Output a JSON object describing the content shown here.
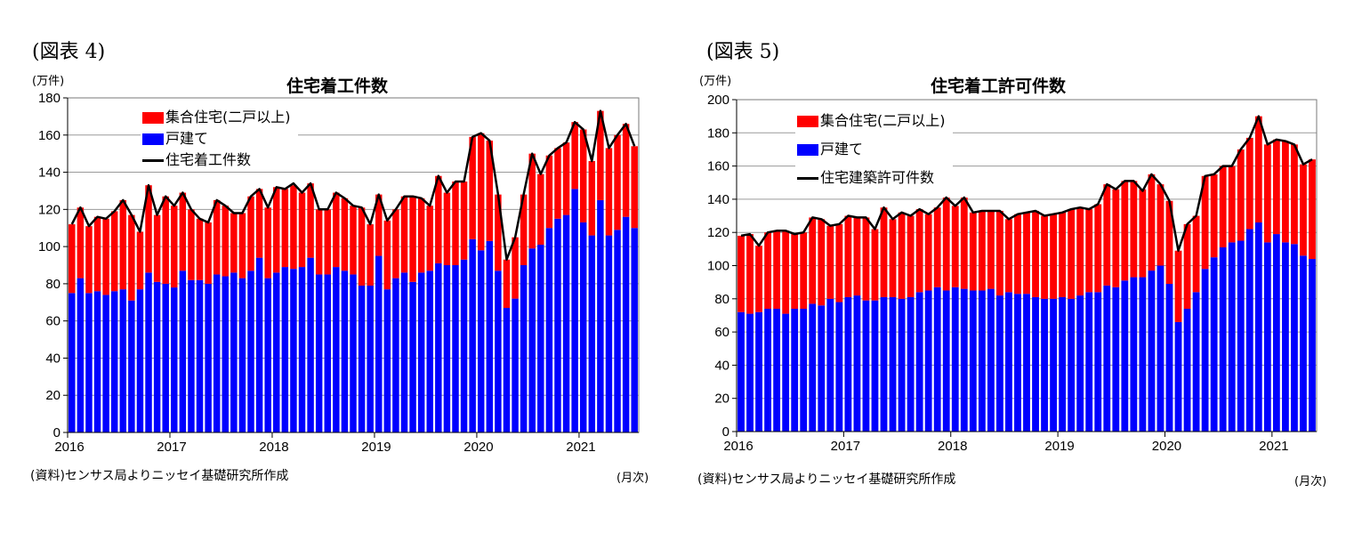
{
  "colors": {
    "multi": "#ff0000",
    "single": "#0000ff",
    "total": "#000000"
  },
  "charts": [
    {
      "figure_label": "(図表 4)",
      "unit_label": "(万件)",
      "x_unit_label": "(月次)",
      "source": "(資料)センサス局よりニッセイ基礎研究所作成",
      "legend_labels": [
        "集合住宅(二戸以上)",
        "戸建て",
        "住宅着工件数"
      ]
    },
    {
      "figure_label": "(図表 5)",
      "unit_label": "(万件)",
      "x_unit_label": "(月次)",
      "source": "(資料)センサス局よりニッセイ基礎研究所作成",
      "legend_labels": [
        "集合住宅(二戸以上)",
        "戸建て",
        "住宅建築許可件数"
      ]
    }
  ],
  "chart_data": [
    {
      "type": "bar",
      "stacked": true,
      "title": "住宅着工件数",
      "xlabel": "(月次)",
      "ylabel": "(万件)",
      "ylim": [
        0,
        180
      ],
      "yticks": [
        0,
        20,
        40,
        60,
        80,
        100,
        120,
        140,
        160,
        180
      ],
      "xtick_labels": [
        "2016",
        "2017",
        "2018",
        "2019",
        "2020",
        "2021"
      ],
      "months_per_year": 12,
      "legend_position": "top-left",
      "grid": true,
      "series": [
        {
          "name": "戸建て",
          "color": "#0000ff",
          "stack": true,
          "values": [
            75,
            83,
            75,
            76,
            74,
            76,
            77,
            71,
            77,
            86,
            81,
            80,
            78,
            87,
            82,
            82,
            80,
            85,
            84,
            86,
            83,
            87,
            94,
            83,
            86,
            89,
            88,
            89,
            94,
            85,
            85,
            89,
            87,
            85,
            79,
            79,
            95,
            77,
            83,
            86,
            81,
            86,
            87,
            91,
            90,
            90,
            93,
            104,
            98,
            103,
            87,
            67,
            72,
            90,
            99,
            101,
            110,
            115,
            117,
            131,
            113,
            106,
            125,
            106,
            109,
            116,
            110
          ]
        },
        {
          "name": "集合住宅(二戸以上)",
          "color": "#ff0000",
          "stack": true,
          "values": [
            37,
            38,
            36,
            40,
            41,
            43,
            48,
            46,
            31,
            47,
            36,
            47,
            44,
            42,
            38,
            33,
            33,
            40,
            38,
            32,
            35,
            40,
            37,
            38,
            46,
            42,
            45,
            40,
            40,
            35,
            35,
            40,
            39,
            37,
            42,
            33,
            33,
            37,
            37,
            41,
            46,
            40,
            35,
            47,
            39,
            45,
            42,
            55,
            63,
            54,
            41,
            26,
            33,
            38,
            51,
            38,
            39,
            38,
            39,
            36,
            50,
            40,
            48,
            47,
            51,
            50,
            44
          ]
        },
        {
          "name": "住宅着工件数",
          "type": "line",
          "color": "#000000",
          "values": [
            112,
            121,
            111,
            116,
            115,
            119,
            125,
            117,
            108,
            133,
            117,
            127,
            122,
            129,
            120,
            115,
            113,
            125,
            122,
            118,
            118,
            127,
            131,
            121,
            132,
            131,
            134,
            129,
            134,
            120,
            120,
            129,
            126,
            122,
            121,
            112,
            128,
            114,
            120,
            127,
            127,
            126,
            122,
            138,
            129,
            135,
            135,
            159,
            161,
            157,
            128,
            93,
            105,
            128,
            150,
            139,
            149,
            153,
            156,
            167,
            163,
            146,
            173,
            153,
            160,
            166,
            154
          ]
        }
      ]
    },
    {
      "type": "bar",
      "stacked": true,
      "title": "住宅着工許可件数",
      "xlabel": "(月次)",
      "ylabel": "(万件)",
      "ylim": [
        0,
        200
      ],
      "yticks": [
        0,
        20,
        40,
        60,
        80,
        100,
        120,
        140,
        160,
        180,
        200
      ],
      "xtick_labels": [
        "2016",
        "2017",
        "2018",
        "2019",
        "2020",
        "2021"
      ],
      "months_per_year": 12,
      "legend_position": "top-left",
      "grid": true,
      "series": [
        {
          "name": "戸建て",
          "color": "#0000ff",
          "stack": true,
          "values": [
            72,
            71,
            72,
            74,
            74,
            71,
            74,
            74,
            77,
            76,
            80,
            78,
            81,
            82,
            79,
            79,
            81,
            81,
            80,
            81,
            84,
            85,
            87,
            85,
            87,
            86,
            85,
            85,
            86,
            82,
            84,
            83,
            83,
            81,
            80,
            80,
            81,
            80,
            82,
            84,
            84,
            88,
            87,
            91,
            93,
            93,
            97,
            100,
            89,
            66,
            74,
            84,
            98,
            105,
            111,
            114,
            115,
            122,
            126,
            114,
            119,
            114,
            113,
            106,
            104
          ]
        },
        {
          "name": "集合住宅(二戸以上)",
          "color": "#ff0000",
          "stack": true,
          "values": [
            46,
            48,
            40,
            46,
            47,
            50,
            45,
            46,
            52,
            52,
            44,
            47,
            49,
            47,
            50,
            43,
            54,
            47,
            52,
            49,
            50,
            46,
            48,
            56,
            49,
            55,
            47,
            48,
            47,
            51,
            44,
            48,
            49,
            52,
            50,
            51,
            51,
            54,
            53,
            50,
            53,
            61,
            59,
            60,
            58,
            53,
            58,
            49,
            50,
            43,
            51,
            46,
            56,
            50,
            49,
            46,
            55,
            55,
            64,
            59,
            57,
            61,
            60,
            55,
            60
          ]
        },
        {
          "name": "住宅建築許可件数",
          "type": "line",
          "color": "#000000",
          "values": [
            118,
            119,
            112,
            120,
            121,
            121,
            119,
            120,
            129,
            128,
            124,
            125,
            130,
            129,
            129,
            122,
            135,
            128,
            132,
            130,
            134,
            131,
            135,
            141,
            136,
            141,
            132,
            133,
            133,
            133,
            128,
            131,
            132,
            133,
            130,
            131,
            132,
            134,
            135,
            134,
            137,
            149,
            146,
            151,
            151,
            145,
            155,
            149,
            139,
            109,
            125,
            130,
            154,
            155,
            160,
            160,
            170,
            177,
            190,
            173,
            176,
            175,
            173,
            161,
            164
          ]
        }
      ]
    }
  ]
}
